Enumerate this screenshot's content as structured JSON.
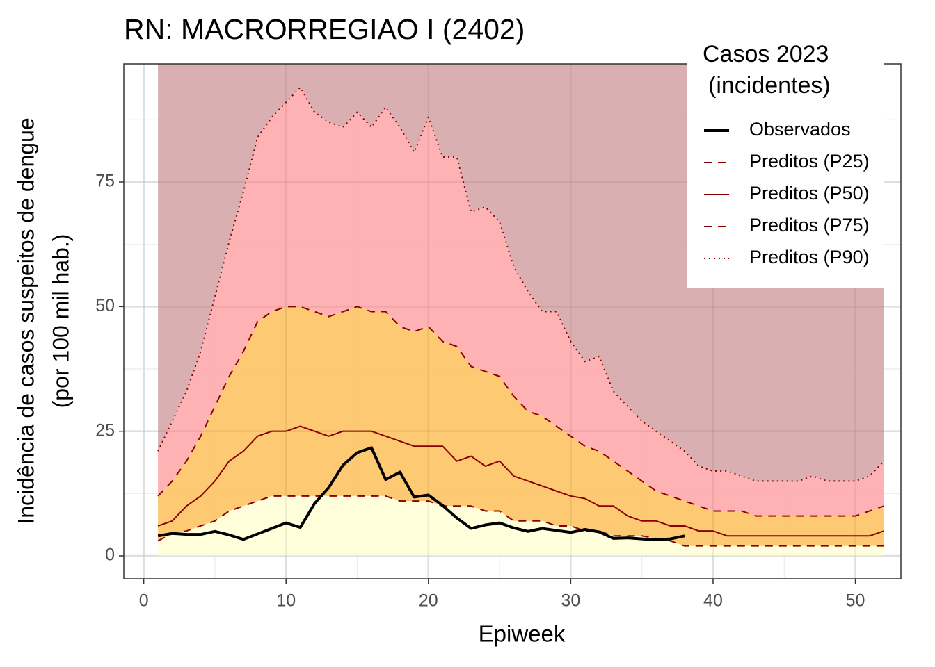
{
  "chart_data": {
    "type": "line",
    "title": "RN: MACRORREGIAO I (2402)",
    "xlabel": "Epiweek",
    "ylabel": [
      "Incidência de casos suspeitos de dengue",
      "(por 100 mil hab.)"
    ],
    "legend_title": [
      "Casos 2023",
      "(incidentes)"
    ],
    "legend": "top-right",
    "grid": true,
    "minor_grid": true,
    "xlim": [
      -1.4,
      53.2
    ],
    "xticks": [
      0,
      10,
      20,
      30,
      40,
      50
    ],
    "ylim": [
      -4.6,
      98.7
    ],
    "yticks": [
      0,
      25,
      50,
      75
    ],
    "band_fills": [
      "#ffffd6",
      "#fdc15b",
      "#ffa4a6",
      "#d5a6a8"
    ],
    "x": [
      1,
      2,
      3,
      4,
      5,
      6,
      7,
      8,
      9,
      10,
      11,
      12,
      13,
      14,
      15,
      16,
      17,
      18,
      19,
      20,
      21,
      22,
      23,
      24,
      25,
      26,
      27,
      28,
      29,
      30,
      31,
      32,
      33,
      34,
      35,
      36,
      37,
      38,
      39,
      40,
      41,
      42,
      43,
      44,
      45,
      46,
      47,
      48,
      49,
      50,
      51,
      52
    ],
    "series": [
      {
        "name": "Observados",
        "color": "#000000",
        "linetype": "thick",
        "values": [
          4.0,
          4.5,
          4.3,
          4.3,
          4.9,
          4.2,
          3.3,
          4.4,
          5.5,
          6.6,
          5.7,
          10.5,
          13.7,
          18.2,
          20.7,
          21.7,
          15.3,
          16.8,
          11.8,
          12.2,
          10.1,
          7.6,
          5.5,
          6.2,
          6.6,
          5.6,
          4.9,
          5.5,
          5.1,
          4.7,
          5.3,
          4.8,
          3.5,
          3.6,
          3.4,
          3.2,
          3.4,
          4.0,
          null,
          null,
          null,
          null,
          null,
          null,
          null,
          null,
          null,
          null,
          null,
          null,
          null,
          null
        ]
      },
      {
        "name": "Preditos (P25)",
        "color": "#8b0000",
        "linetype": "dashed",
        "values": [
          3,
          4.5,
          5,
          6,
          7,
          9,
          10,
          11,
          12,
          12,
          12,
          12,
          12,
          12,
          12,
          12,
          12,
          11,
          11,
          11,
          10,
          10,
          10,
          9,
          9,
          7,
          7,
          7,
          6,
          6,
          5,
          5,
          4,
          4,
          4,
          3.5,
          3,
          2,
          2,
          2,
          2,
          2,
          2,
          2,
          2,
          2,
          2,
          2,
          2,
          2,
          2,
          2
        ]
      },
      {
        "name": "Preditos (P50)",
        "color": "#8b0000",
        "linetype": "solid",
        "values": [
          6,
          7,
          10,
          12,
          15,
          19,
          21,
          24,
          25,
          25,
          26,
          25,
          24,
          25,
          25,
          25,
          24,
          23,
          22,
          22,
          22,
          19,
          20,
          18,
          19,
          16,
          15,
          14,
          13,
          12,
          11.5,
          10,
          10,
          8,
          7,
          7,
          6,
          6,
          5,
          5,
          4,
          4,
          4,
          4,
          4,
          4,
          4,
          4,
          4,
          4,
          4,
          5
        ]
      },
      {
        "name": "Preditos (P75)",
        "color": "#8b0000",
        "linetype": "dashed",
        "values": [
          12,
          15,
          19,
          24,
          30,
          36,
          41,
          47,
          49,
          50,
          50,
          49,
          48,
          49,
          50,
          49,
          49,
          46,
          45,
          46,
          43,
          42,
          38,
          37,
          36,
          32,
          29,
          28,
          26,
          24,
          22,
          21,
          19,
          17,
          15,
          13,
          12,
          11,
          10,
          9,
          9,
          9,
          8,
          8,
          8,
          8,
          8,
          8,
          8,
          8,
          9,
          10
        ]
      },
      {
        "name": "Preditos (P90)",
        "color": "#8b0000",
        "linetype": "dotted",
        "values": [
          21,
          27,
          33,
          41,
          52,
          63,
          73,
          84,
          88,
          91,
          94,
          89,
          87,
          86,
          89,
          86,
          90,
          86,
          81,
          88,
          80,
          80,
          69,
          70,
          67,
          58,
          53,
          49,
          49,
          43,
          39,
          40,
          33,
          30,
          27,
          25,
          23,
          21,
          18,
          17,
          17,
          16,
          15,
          15,
          15,
          15,
          16,
          15,
          15,
          15,
          16,
          19
        ]
      }
    ]
  }
}
